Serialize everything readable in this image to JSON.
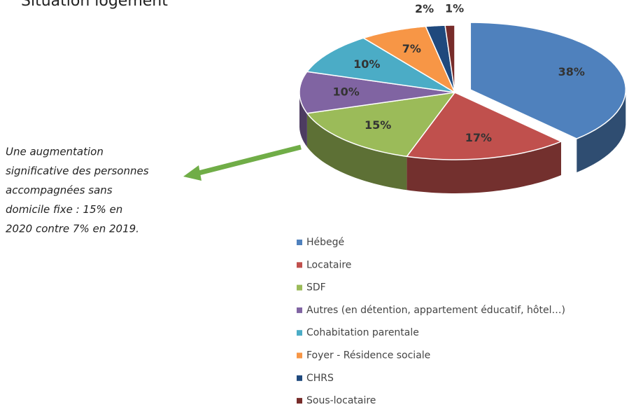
{
  "chart_data": {
    "type": "pie3d",
    "title": "Situation logement",
    "categories": [
      "Hébegé",
      "Locataire",
      "SDF",
      "Autres (en détention, appartement éducatif, hôtel…)",
      "Cohabitation parentale",
      "Foyer - Résidence sociale",
      "CHRS",
      "Sous-locataire"
    ],
    "values": [
      38,
      17,
      15,
      10,
      10,
      7,
      2,
      1
    ],
    "value_labels": [
      "38%",
      "17%",
      "15%",
      "10%",
      "10%",
      "7%",
      "2%",
      "1%"
    ],
    "colors": [
      "#4f81bd",
      "#c0504d",
      "#9bbb59",
      "#8064a2",
      "#4bacc6",
      "#f79646",
      "#1f497d",
      "#772c2a"
    ],
    "annotation": [
      "Une augmentation",
      "significative des personnes",
      "accompagnées sans",
      "domicile fixe : 15% en",
      "2020 contre 7% en 2019."
    ]
  }
}
